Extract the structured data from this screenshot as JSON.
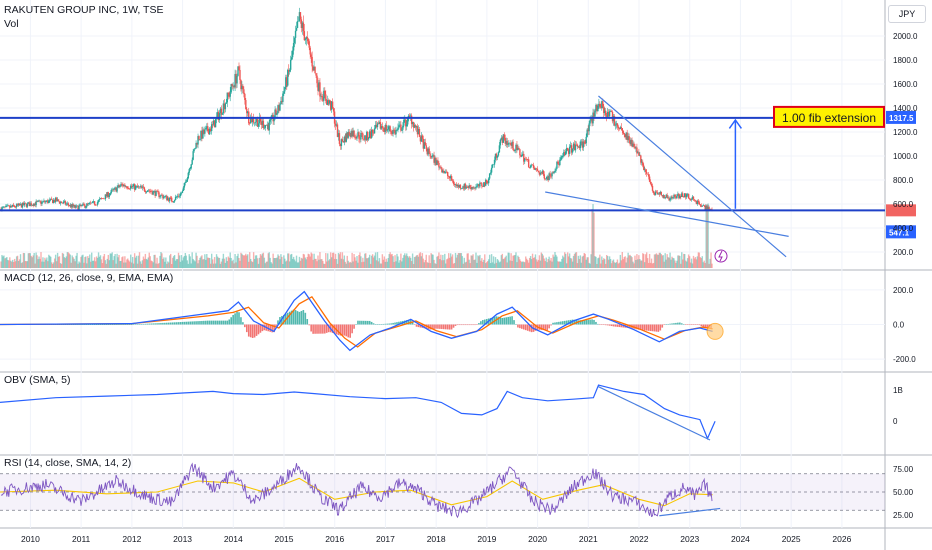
{
  "header": {
    "symbol_line": "RAKUTEN GROUP INC, 1W, TSE",
    "vol_label": "Vol",
    "currency": "JPY"
  },
  "annotation": {
    "label": "1.00 fib extension",
    "bg": "#fff200",
    "border": "#e0001b"
  },
  "colors": {
    "up": "#26a69a",
    "down": "#ef5350",
    "level": "#1e40c8",
    "trend": "#4a7fe0",
    "macd": "#2962ff",
    "signal": "#ff6d00",
    "obv": "#2962ff",
    "rsi": "#7e57c2",
    "rsi_ma": "#f7c600"
  },
  "chart_data": [
    {
      "type": "candlestick",
      "name": "price",
      "title": "RAKUTEN GROUP INC, 1W, TSE",
      "ylim": [
        100,
        2200
      ],
      "yticks": [
        200.0,
        400.0,
        600.0,
        800.0,
        1000.0,
        1200.0,
        1400.0,
        1600.0,
        1800.0,
        2000.0
      ],
      "x_years": [
        "2010",
        "2011",
        "2012",
        "2013",
        "2014",
        "2015",
        "2016",
        "2017",
        "2018",
        "2019",
        "2020",
        "2021",
        "2022",
        "2023",
        "2024",
        "2025",
        "2026"
      ],
      "close_path": [
        {
          "x": 2009.4,
          "y": 560
        },
        {
          "x": 2010.0,
          "y": 600
        },
        {
          "x": 2010.5,
          "y": 630
        },
        {
          "x": 2010.9,
          "y": 570
        },
        {
          "x": 2011.3,
          "y": 610
        },
        {
          "x": 2011.8,
          "y": 760
        },
        {
          "x": 2012.3,
          "y": 720
        },
        {
          "x": 2012.8,
          "y": 630
        },
        {
          "x": 2013.0,
          "y": 700
        },
        {
          "x": 2013.3,
          "y": 1150
        },
        {
          "x": 2013.6,
          "y": 1250
        },
        {
          "x": 2013.9,
          "y": 1500
        },
        {
          "x": 2014.1,
          "y": 1700
        },
        {
          "x": 2014.3,
          "y": 1320
        },
        {
          "x": 2014.7,
          "y": 1250
        },
        {
          "x": 2014.9,
          "y": 1400
        },
        {
          "x": 2015.1,
          "y": 1700
        },
        {
          "x": 2015.3,
          "y": 2150
        },
        {
          "x": 2015.45,
          "y": 1950
        },
        {
          "x": 2015.7,
          "y": 1550
        },
        {
          "x": 2015.95,
          "y": 1400
        },
        {
          "x": 2016.1,
          "y": 1100
        },
        {
          "x": 2016.3,
          "y": 1200
        },
        {
          "x": 2016.6,
          "y": 1150
        },
        {
          "x": 2016.9,
          "y": 1250
        },
        {
          "x": 2017.2,
          "y": 1200
        },
        {
          "x": 2017.5,
          "y": 1320
        },
        {
          "x": 2017.8,
          "y": 1050
        },
        {
          "x": 2018.1,
          "y": 900
        },
        {
          "x": 2018.4,
          "y": 750
        },
        {
          "x": 2018.8,
          "y": 740
        },
        {
          "x": 2019.0,
          "y": 780
        },
        {
          "x": 2019.3,
          "y": 1150
        },
        {
          "x": 2019.6,
          "y": 1050
        },
        {
          "x": 2019.9,
          "y": 900
        },
        {
          "x": 2020.2,
          "y": 820
        },
        {
          "x": 2020.6,
          "y": 1050
        },
        {
          "x": 2020.9,
          "y": 1100
        },
        {
          "x": 2021.2,
          "y": 1450
        },
        {
          "x": 2021.5,
          "y": 1300
        },
        {
          "x": 2021.8,
          "y": 1150
        },
        {
          "x": 2022.0,
          "y": 1000
        },
        {
          "x": 2022.3,
          "y": 700
        },
        {
          "x": 2022.6,
          "y": 650
        },
        {
          "x": 2022.9,
          "y": 680
        },
        {
          "x": 2023.2,
          "y": 600
        },
        {
          "x": 2023.4,
          "y": 547
        }
      ],
      "volume_spikes": [
        {
          "x": 2021.1,
          "value": "high"
        },
        {
          "x": 2023.35,
          "value": "high"
        }
      ],
      "levels": [
        {
          "y": 1317.5,
          "label": "1317.5"
        },
        {
          "y": 547.1,
          "label": "547.1"
        }
      ],
      "annotations": [
        "1.00 fib extension"
      ]
    },
    {
      "type": "line",
      "name": "MACD",
      "title": "MACD (12, 26, close, 9, EMA, EMA)",
      "ylim": [
        -240,
        240
      ],
      "yticks": [
        "200.0",
        "0.0",
        "-200.0"
      ],
      "series": [
        {
          "name": "MACD",
          "values": [
            {
              "x": 2009.4,
              "y": 0
            },
            {
              "x": 2012.0,
              "y": 5
            },
            {
              "x": 2013.4,
              "y": 60
            },
            {
              "x": 2013.9,
              "y": 80
            },
            {
              "x": 2014.1,
              "y": 130
            },
            {
              "x": 2014.4,
              "y": 20
            },
            {
              "x": 2014.8,
              "y": -40
            },
            {
              "x": 2015.2,
              "y": 140
            },
            {
              "x": 2015.4,
              "y": 190
            },
            {
              "x": 2015.8,
              "y": 20
            },
            {
              "x": 2016.1,
              "y": -90
            },
            {
              "x": 2016.3,
              "y": -150
            },
            {
              "x": 2016.7,
              "y": -60
            },
            {
              "x": 2017.1,
              "y": -20
            },
            {
              "x": 2017.5,
              "y": 30
            },
            {
              "x": 2017.9,
              "y": -40
            },
            {
              "x": 2018.3,
              "y": -80
            },
            {
              "x": 2018.8,
              "y": -40
            },
            {
              "x": 2019.2,
              "y": 60
            },
            {
              "x": 2019.5,
              "y": 100
            },
            {
              "x": 2019.9,
              "y": -20
            },
            {
              "x": 2020.2,
              "y": -60
            },
            {
              "x": 2020.7,
              "y": 20
            },
            {
              "x": 2021.1,
              "y": 60
            },
            {
              "x": 2021.4,
              "y": 30
            },
            {
              "x": 2021.9,
              "y": -30
            },
            {
              "x": 2022.4,
              "y": -100
            },
            {
              "x": 2022.8,
              "y": -40
            },
            {
              "x": 2023.2,
              "y": -20
            },
            {
              "x": 2023.45,
              "y": -40
            }
          ]
        },
        {
          "name": "Signal",
          "values": [
            {
              "x": 2009.4,
              "y": 0
            },
            {
              "x": 2012.0,
              "y": 5
            },
            {
              "x": 2013.5,
              "y": 50
            },
            {
              "x": 2014.0,
              "y": 70
            },
            {
              "x": 2014.3,
              "y": 100
            },
            {
              "x": 2014.6,
              "y": 10
            },
            {
              "x": 2014.9,
              "y": -20
            },
            {
              "x": 2015.3,
              "y": 120
            },
            {
              "x": 2015.55,
              "y": 160
            },
            {
              "x": 2015.9,
              "y": 10
            },
            {
              "x": 2016.2,
              "y": -80
            },
            {
              "x": 2016.45,
              "y": -130
            },
            {
              "x": 2016.8,
              "y": -50
            },
            {
              "x": 2017.2,
              "y": -15
            },
            {
              "x": 2017.6,
              "y": 20
            },
            {
              "x": 2018.0,
              "y": -35
            },
            {
              "x": 2018.4,
              "y": -70
            },
            {
              "x": 2018.9,
              "y": -30
            },
            {
              "x": 2019.3,
              "y": 50
            },
            {
              "x": 2019.6,
              "y": 80
            },
            {
              "x": 2020.0,
              "y": -15
            },
            {
              "x": 2020.3,
              "y": -50
            },
            {
              "x": 2020.8,
              "y": 15
            },
            {
              "x": 2021.2,
              "y": 50
            },
            {
              "x": 2021.5,
              "y": 25
            },
            {
              "x": 2022.0,
              "y": -25
            },
            {
              "x": 2022.5,
              "y": -85
            },
            {
              "x": 2022.9,
              "y": -35
            },
            {
              "x": 2023.25,
              "y": -15
            },
            {
              "x": 2023.45,
              "y": -25
            }
          ]
        }
      ]
    },
    {
      "type": "line",
      "name": "OBV",
      "title": "OBV (SMA, 5)",
      "yticks": [
        "1B",
        "0"
      ],
      "series": [
        {
          "name": "OBV",
          "values": [
            {
              "x": 2009.4,
              "y": 0.6
            },
            {
              "x": 2010.5,
              "y": 0.75
            },
            {
              "x": 2011.5,
              "y": 0.8
            },
            {
              "x": 2012.5,
              "y": 0.85
            },
            {
              "x": 2013.0,
              "y": 0.9
            },
            {
              "x": 2013.6,
              "y": 0.95
            },
            {
              "x": 2014.0,
              "y": 0.88
            },
            {
              "x": 2014.6,
              "y": 0.85
            },
            {
              "x": 2015.2,
              "y": 0.93
            },
            {
              "x": 2015.6,
              "y": 0.88
            },
            {
              "x": 2016.3,
              "y": 0.78
            },
            {
              "x": 2017.0,
              "y": 0.72
            },
            {
              "x": 2017.6,
              "y": 0.75
            },
            {
              "x": 2018.1,
              "y": 0.6
            },
            {
              "x": 2018.5,
              "y": 0.25
            },
            {
              "x": 2018.9,
              "y": 0.2
            },
            {
              "x": 2019.2,
              "y": 0.4
            },
            {
              "x": 2019.4,
              "y": 0.95
            },
            {
              "x": 2019.7,
              "y": 0.75
            },
            {
              "x": 2020.2,
              "y": 0.65
            },
            {
              "x": 2020.7,
              "y": 0.7
            },
            {
              "x": 2021.1,
              "y": 0.75
            },
            {
              "x": 2021.2,
              "y": 1.15
            },
            {
              "x": 2021.7,
              "y": 0.95
            },
            {
              "x": 2022.1,
              "y": 0.85
            },
            {
              "x": 2022.5,
              "y": 0.4
            },
            {
              "x": 2022.8,
              "y": 0.2
            },
            {
              "x": 2023.2,
              "y": 0.05
            },
            {
              "x": 2023.35,
              "y": -0.55
            },
            {
              "x": 2023.5,
              "y": 0.0
            }
          ]
        }
      ],
      "trendlines": 1
    },
    {
      "type": "line",
      "name": "RSI",
      "title": "RSI (14, close, SMA, 14, 2)",
      "ylim": [
        15,
        85
      ],
      "yticks": [
        "75.00",
        "50.00",
        "25.00"
      ],
      "bands": [
        30,
        50,
        70
      ],
      "series": [
        {
          "name": "RSI",
          "values": [
            {
              "x": 2009.4,
              "y": 50
            },
            {
              "x": 2010.3,
              "y": 58
            },
            {
              "x": 2011.0,
              "y": 40
            },
            {
              "x": 2011.7,
              "y": 62
            },
            {
              "x": 2012.3,
              "y": 45
            },
            {
              "x": 2012.8,
              "y": 38
            },
            {
              "x": 2013.2,
              "y": 78
            },
            {
              "x": 2013.6,
              "y": 55
            },
            {
              "x": 2014.0,
              "y": 70
            },
            {
              "x": 2014.4,
              "y": 40
            },
            {
              "x": 2014.8,
              "y": 55
            },
            {
              "x": 2015.3,
              "y": 80
            },
            {
              "x": 2015.7,
              "y": 45
            },
            {
              "x": 2016.1,
              "y": 30
            },
            {
              "x": 2016.5,
              "y": 55
            },
            {
              "x": 2016.9,
              "y": 45
            },
            {
              "x": 2017.3,
              "y": 60
            },
            {
              "x": 2017.7,
              "y": 50
            },
            {
              "x": 2018.0,
              "y": 35
            },
            {
              "x": 2018.4,
              "y": 28
            },
            {
              "x": 2018.8,
              "y": 40
            },
            {
              "x": 2019.2,
              "y": 60
            },
            {
              "x": 2019.5,
              "y": 75
            },
            {
              "x": 2019.9,
              "y": 40
            },
            {
              "x": 2020.3,
              "y": 30
            },
            {
              "x": 2020.7,
              "y": 55
            },
            {
              "x": 2021.1,
              "y": 72
            },
            {
              "x": 2021.5,
              "y": 45
            },
            {
              "x": 2021.9,
              "y": 40
            },
            {
              "x": 2022.3,
              "y": 25
            },
            {
              "x": 2022.6,
              "y": 45
            },
            {
              "x": 2022.9,
              "y": 55
            },
            {
              "x": 2023.1,
              "y": 45
            },
            {
              "x": 2023.3,
              "y": 58
            },
            {
              "x": 2023.45,
              "y": 42
            }
          ]
        },
        {
          "name": "RSI-based MA",
          "values": [
            {
              "x": 2009.4,
              "y": 50
            },
            {
              "x": 2010.5,
              "y": 52
            },
            {
              "x": 2011.5,
              "y": 48
            },
            {
              "x": 2012.5,
              "y": 50
            },
            {
              "x": 2013.3,
              "y": 62
            },
            {
              "x": 2014.0,
              "y": 60
            },
            {
              "x": 2014.6,
              "y": 50
            },
            {
              "x": 2015.3,
              "y": 65
            },
            {
              "x": 2016.0,
              "y": 42
            },
            {
              "x": 2016.8,
              "y": 50
            },
            {
              "x": 2017.5,
              "y": 52
            },
            {
              "x": 2018.3,
              "y": 36
            },
            {
              "x": 2019.0,
              "y": 45
            },
            {
              "x": 2019.5,
              "y": 62
            },
            {
              "x": 2020.1,
              "y": 42
            },
            {
              "x": 2020.8,
              "y": 52
            },
            {
              "x": 2021.3,
              "y": 58
            },
            {
              "x": 2022.0,
              "y": 42
            },
            {
              "x": 2022.5,
              "y": 35
            },
            {
              "x": 2023.0,
              "y": 48
            },
            {
              "x": 2023.45,
              "y": 47
            }
          ]
        }
      ]
    }
  ]
}
